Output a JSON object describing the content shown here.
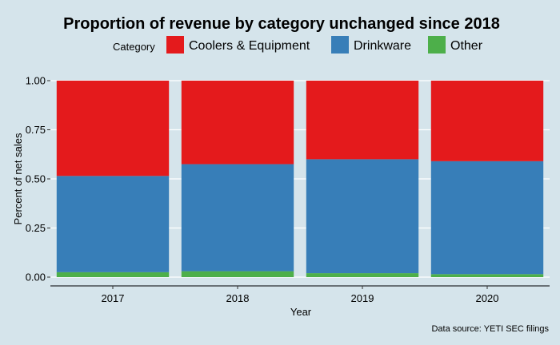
{
  "chart_data": {
    "type": "bar",
    "stacked": true,
    "title": "Proportion of revenue by category unchanged since 2018",
    "xlabel": "Year",
    "ylabel": "Percent of net sales",
    "caption": "Data source: YETI SEC filings",
    "legend_title": "Category",
    "legend_position": "top",
    "categories": [
      "2017",
      "2018",
      "2019",
      "2020"
    ],
    "y_ticks": [
      "0.00",
      "0.25",
      "0.50",
      "0.75",
      "1.00"
    ],
    "ylim": [
      0,
      1
    ],
    "grid": "horizontal-major",
    "series": [
      {
        "name": "Other",
        "color": "#4daf4a",
        "values": [
          0.025,
          0.03,
          0.02,
          0.015
        ]
      },
      {
        "name": "Drinkware",
        "color": "#377eb8",
        "values": [
          0.49,
          0.545,
          0.58,
          0.575
        ]
      },
      {
        "name": "Coolers & Equipment",
        "color": "#e41a1c",
        "values": [
          0.485,
          0.425,
          0.4,
          0.41
        ]
      }
    ],
    "legend_order": [
      "Coolers & Equipment",
      "Drinkware",
      "Other"
    ]
  }
}
